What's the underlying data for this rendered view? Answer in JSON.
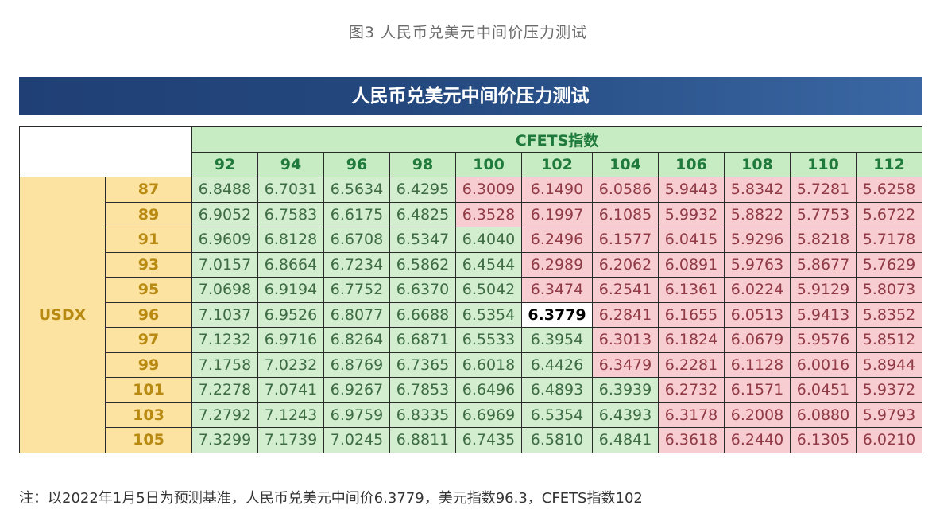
{
  "figure_caption": "图3 人民币兑美元中间价压力测试",
  "banner_title": "人民币兑美元中间价压力测试",
  "table": {
    "column_group_label": "CFETS指数",
    "row_group_label": "USDX",
    "columns": [
      "92",
      "94",
      "96",
      "98",
      "100",
      "102",
      "104",
      "106",
      "108",
      "110",
      "112"
    ],
    "rows": [
      {
        "label": "87",
        "values": [
          "6.8488",
          "6.7031",
          "6.5634",
          "6.4295",
          "6.3009",
          "6.1490",
          "6.0586",
          "5.9443",
          "5.8342",
          "5.7281",
          "5.6258"
        ]
      },
      {
        "label": "89",
        "values": [
          "6.9052",
          "6.7583",
          "6.6175",
          "6.4825",
          "6.3528",
          "6.1997",
          "6.1085",
          "5.9932",
          "5.8822",
          "5.7753",
          "5.6722"
        ]
      },
      {
        "label": "91",
        "values": [
          "6.9609",
          "6.8128",
          "6.6708",
          "6.5347",
          "6.4040",
          "6.2496",
          "6.1577",
          "6.0415",
          "5.9296",
          "5.8218",
          "5.7178"
        ]
      },
      {
        "label": "93",
        "values": [
          "7.0157",
          "6.8664",
          "6.7234",
          "6.5862",
          "6.4544",
          "6.2989",
          "6.2062",
          "6.0891",
          "5.9763",
          "5.8677",
          "5.7629"
        ]
      },
      {
        "label": "95",
        "values": [
          "7.0698",
          "6.9194",
          "6.7752",
          "6.6370",
          "6.5042",
          "6.3474",
          "6.2541",
          "6.1361",
          "6.0224",
          "5.9129",
          "5.8073"
        ]
      },
      {
        "label": "96",
        "values": [
          "7.1037",
          "6.9526",
          "6.8077",
          "6.6688",
          "6.5354",
          "6.3779",
          "6.2841",
          "6.1655",
          "6.0513",
          "5.9413",
          "5.8352"
        ]
      },
      {
        "label": "97",
        "values": [
          "7.1232",
          "6.9716",
          "6.8264",
          "6.6871",
          "6.5533",
          "6.3954",
          "6.3013",
          "6.1824",
          "6.0679",
          "5.9576",
          "5.8512"
        ]
      },
      {
        "label": "99",
        "values": [
          "7.1758",
          "7.0232",
          "6.8769",
          "6.7365",
          "6.6018",
          "6.4426",
          "6.3479",
          "6.2281",
          "6.1128",
          "6.0016",
          "5.8944"
        ]
      },
      {
        "label": "101",
        "values": [
          "7.2278",
          "7.0741",
          "6.9267",
          "6.7853",
          "6.6496",
          "6.4893",
          "6.3939",
          "6.2732",
          "6.1571",
          "6.0451",
          "5.9372"
        ]
      },
      {
        "label": "103",
        "values": [
          "7.2792",
          "7.1243",
          "6.9759",
          "6.8335",
          "6.6969",
          "6.5354",
          "6.4393",
          "6.3178",
          "6.2008",
          "6.0880",
          "5.9793"
        ]
      },
      {
        "label": "105",
        "values": [
          "7.3299",
          "7.1739",
          "7.0245",
          "6.8811",
          "6.7435",
          "6.5810",
          "6.4841",
          "6.3618",
          "6.2440",
          "6.1305",
          "6.0210"
        ]
      }
    ],
    "base_value": "6.3779",
    "colors": {
      "below_base": "#d3eecf",
      "above_base": "#f8cdd2",
      "header_green": "#c7ebc3",
      "header_yellow": "#fce3a2",
      "banner_blue": "#24497f"
    }
  },
  "footnote": "注：以2022年1月5日为预测基准，人民币兑美元中间价6.3779，美元指数96.3，CFETS指数102"
}
